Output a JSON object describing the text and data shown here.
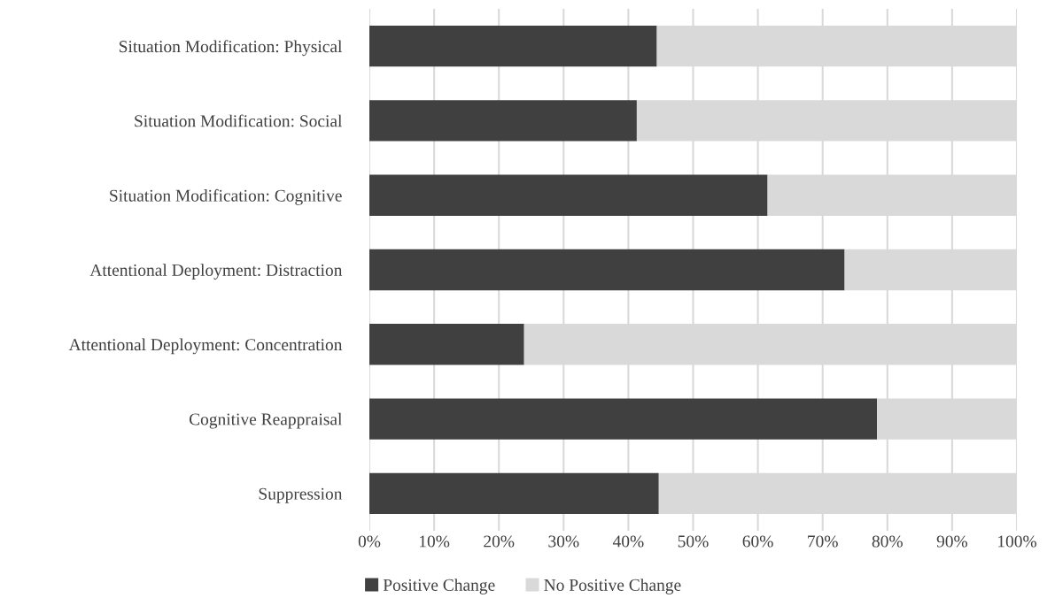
{
  "chart_data": {
    "type": "bar",
    "orientation": "horizontal",
    "stacked": true,
    "categories": [
      "Situation Modification: Physical",
      "Situation Modification: Social",
      "Situation Modification: Cognitive",
      "Attentional Deployment: Distraction",
      "Attentional Deployment: Concentration",
      "Cognitive Reappraisal",
      "Suppression"
    ],
    "series": [
      {
        "name": "Positive Change",
        "color": "#404040",
        "values": [
          44.4,
          41.3,
          61.5,
          73.4,
          23.9,
          78.4,
          44.7
        ]
      },
      {
        "name": "No Positive Change",
        "color": "#d9d9d9",
        "values": [
          55.6,
          58.7,
          38.5,
          26.6,
          76.1,
          21.6,
          55.3
        ]
      }
    ],
    "xlim": [
      0,
      100
    ],
    "xticks": [
      {
        "value": 0,
        "label": "0%"
      },
      {
        "value": 10,
        "label": "10%"
      },
      {
        "value": 20,
        "label": "20%"
      },
      {
        "value": 30,
        "label": "30%"
      },
      {
        "value": 40,
        "label": "40%"
      },
      {
        "value": 50,
        "label": "50%"
      },
      {
        "value": 60,
        "label": "60%"
      },
      {
        "value": 70,
        "label": "70%"
      },
      {
        "value": 80,
        "label": "80%"
      },
      {
        "value": 90,
        "label": "90%"
      },
      {
        "value": 100,
        "label": "100%"
      }
    ],
    "grid": "x",
    "legend": "bottom"
  }
}
